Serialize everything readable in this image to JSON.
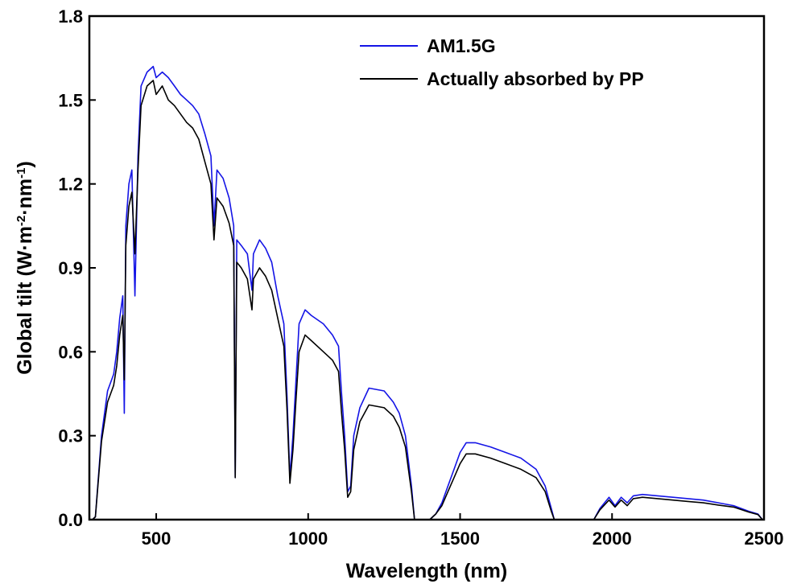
{
  "chart_data": {
    "type": "line",
    "xlabel": "Wavelength (nm)",
    "ylabel_parts": {
      "base": "Global tilt (W·m",
      "sup1": "-2",
      "mid": "·nm",
      "sup2": "-1",
      "end": ")"
    },
    "xlim": [
      280,
      2500
    ],
    "ylim": [
      0.0,
      1.8
    ],
    "x_ticks": [
      500,
      1000,
      1500,
      2000,
      2500
    ],
    "y_ticks": [
      0.0,
      0.3,
      0.6,
      0.9,
      1.2,
      1.5,
      1.8
    ],
    "x_tick_labels": [
      "500",
      "1000",
      "1500",
      "2000",
      "2500"
    ],
    "y_tick_labels": [
      "0.0",
      "0.3",
      "0.6",
      "0.9",
      "1.2",
      "1.5",
      "1.8"
    ],
    "grid": false,
    "legend_position": "top-right",
    "series": [
      {
        "name": "AM1.5G",
        "color": "#1414e6",
        "points": [
          [
            290,
            0.0
          ],
          [
            300,
            0.01
          ],
          [
            320,
            0.3
          ],
          [
            340,
            0.46
          ],
          [
            360,
            0.52
          ],
          [
            370,
            0.6
          ],
          [
            380,
            0.72
          ],
          [
            390,
            0.8
          ],
          [
            395,
            0.38
          ],
          [
            400,
            1.05
          ],
          [
            410,
            1.2
          ],
          [
            420,
            1.25
          ],
          [
            430,
            0.8
          ],
          [
            440,
            1.3
          ],
          [
            450,
            1.55
          ],
          [
            470,
            1.6
          ],
          [
            490,
            1.62
          ],
          [
            500,
            1.58
          ],
          [
            520,
            1.6
          ],
          [
            540,
            1.58
          ],
          [
            560,
            1.55
          ],
          [
            580,
            1.52
          ],
          [
            600,
            1.5
          ],
          [
            620,
            1.48
          ],
          [
            640,
            1.45
          ],
          [
            660,
            1.38
          ],
          [
            680,
            1.3
          ],
          [
            690,
            1.05
          ],
          [
            700,
            1.25
          ],
          [
            720,
            1.22
          ],
          [
            740,
            1.15
          ],
          [
            755,
            1.05
          ],
          [
            760,
            0.15
          ],
          [
            765,
            1.0
          ],
          [
            780,
            0.98
          ],
          [
            800,
            0.95
          ],
          [
            815,
            0.82
          ],
          [
            820,
            0.95
          ],
          [
            840,
            1.0
          ],
          [
            860,
            0.97
          ],
          [
            880,
            0.92
          ],
          [
            900,
            0.8
          ],
          [
            920,
            0.7
          ],
          [
            930,
            0.45
          ],
          [
            940,
            0.15
          ],
          [
            950,
            0.3
          ],
          [
            960,
            0.5
          ],
          [
            970,
            0.7
          ],
          [
            990,
            0.75
          ],
          [
            1010,
            0.73
          ],
          [
            1050,
            0.7
          ],
          [
            1080,
            0.66
          ],
          [
            1100,
            0.62
          ],
          [
            1110,
            0.45
          ],
          [
            1120,
            0.3
          ],
          [
            1130,
            0.1
          ],
          [
            1140,
            0.12
          ],
          [
            1150,
            0.3
          ],
          [
            1170,
            0.4
          ],
          [
            1200,
            0.47
          ],
          [
            1250,
            0.46
          ],
          [
            1280,
            0.42
          ],
          [
            1300,
            0.38
          ],
          [
            1320,
            0.3
          ],
          [
            1340,
            0.12
          ],
          [
            1350,
            0.0
          ],
          [
            1400,
            0.0
          ],
          [
            1420,
            0.02
          ],
          [
            1440,
            0.06
          ],
          [
            1460,
            0.12
          ],
          [
            1480,
            0.18
          ],
          [
            1500,
            0.24
          ],
          [
            1520,
            0.275
          ],
          [
            1550,
            0.275
          ],
          [
            1600,
            0.26
          ],
          [
            1650,
            0.24
          ],
          [
            1700,
            0.22
          ],
          [
            1750,
            0.18
          ],
          [
            1780,
            0.12
          ],
          [
            1800,
            0.04
          ],
          [
            1810,
            0.0
          ],
          [
            1940,
            0.0
          ],
          [
            1960,
            0.04
          ],
          [
            1990,
            0.08
          ],
          [
            2010,
            0.05
          ],
          [
            2030,
            0.08
          ],
          [
            2050,
            0.06
          ],
          [
            2070,
            0.085
          ],
          [
            2100,
            0.09
          ],
          [
            2150,
            0.085
          ],
          [
            2200,
            0.08
          ],
          [
            2250,
            0.075
          ],
          [
            2300,
            0.07
          ],
          [
            2350,
            0.06
          ],
          [
            2400,
            0.05
          ],
          [
            2450,
            0.03
          ],
          [
            2480,
            0.02
          ],
          [
            2495,
            0.0
          ]
        ]
      },
      {
        "name": "Actually absorbed by PP",
        "color": "#000000",
        "points": [
          [
            290,
            0.0
          ],
          [
            300,
            0.01
          ],
          [
            320,
            0.28
          ],
          [
            340,
            0.42
          ],
          [
            360,
            0.48
          ],
          [
            370,
            0.55
          ],
          [
            380,
            0.66
          ],
          [
            390,
            0.73
          ],
          [
            395,
            0.5
          ],
          [
            400,
            0.98
          ],
          [
            410,
            1.12
          ],
          [
            420,
            1.17
          ],
          [
            430,
            0.95
          ],
          [
            440,
            1.25
          ],
          [
            450,
            1.48
          ],
          [
            470,
            1.55
          ],
          [
            490,
            1.57
          ],
          [
            500,
            1.52
          ],
          [
            520,
            1.55
          ],
          [
            540,
            1.5
          ],
          [
            560,
            1.48
          ],
          [
            580,
            1.45
          ],
          [
            600,
            1.42
          ],
          [
            620,
            1.4
          ],
          [
            640,
            1.36
          ],
          [
            660,
            1.28
          ],
          [
            680,
            1.2
          ],
          [
            690,
            1.0
          ],
          [
            700,
            1.15
          ],
          [
            720,
            1.12
          ],
          [
            740,
            1.06
          ],
          [
            755,
            0.98
          ],
          [
            760,
            0.15
          ],
          [
            765,
            0.92
          ],
          [
            780,
            0.9
          ],
          [
            800,
            0.86
          ],
          [
            815,
            0.75
          ],
          [
            820,
            0.86
          ],
          [
            840,
            0.9
          ],
          [
            860,
            0.87
          ],
          [
            880,
            0.82
          ],
          [
            900,
            0.72
          ],
          [
            920,
            0.62
          ],
          [
            930,
            0.4
          ],
          [
            940,
            0.13
          ],
          [
            950,
            0.25
          ],
          [
            960,
            0.43
          ],
          [
            970,
            0.6
          ],
          [
            990,
            0.66
          ],
          [
            1010,
            0.64
          ],
          [
            1050,
            0.6
          ],
          [
            1080,
            0.57
          ],
          [
            1100,
            0.53
          ],
          [
            1110,
            0.38
          ],
          [
            1120,
            0.25
          ],
          [
            1130,
            0.08
          ],
          [
            1140,
            0.1
          ],
          [
            1150,
            0.25
          ],
          [
            1170,
            0.35
          ],
          [
            1200,
            0.41
          ],
          [
            1250,
            0.4
          ],
          [
            1280,
            0.37
          ],
          [
            1300,
            0.33
          ],
          [
            1320,
            0.26
          ],
          [
            1340,
            0.1
          ],
          [
            1350,
            0.0
          ],
          [
            1400,
            0.0
          ],
          [
            1420,
            0.02
          ],
          [
            1440,
            0.05
          ],
          [
            1460,
            0.1
          ],
          [
            1480,
            0.15
          ],
          [
            1500,
            0.2
          ],
          [
            1520,
            0.235
          ],
          [
            1550,
            0.235
          ],
          [
            1600,
            0.22
          ],
          [
            1650,
            0.2
          ],
          [
            1700,
            0.18
          ],
          [
            1750,
            0.15
          ],
          [
            1780,
            0.1
          ],
          [
            1800,
            0.03
          ],
          [
            1810,
            0.0
          ],
          [
            1940,
            0.0
          ],
          [
            1960,
            0.035
          ],
          [
            1990,
            0.07
          ],
          [
            2010,
            0.045
          ],
          [
            2030,
            0.07
          ],
          [
            2050,
            0.05
          ],
          [
            2070,
            0.075
          ],
          [
            2100,
            0.08
          ],
          [
            2150,
            0.075
          ],
          [
            2200,
            0.07
          ],
          [
            2250,
            0.065
          ],
          [
            2300,
            0.06
          ],
          [
            2350,
            0.052
          ],
          [
            2400,
            0.045
          ],
          [
            2450,
            0.027
          ],
          [
            2480,
            0.018
          ],
          [
            2495,
            0.0
          ]
        ]
      }
    ]
  }
}
